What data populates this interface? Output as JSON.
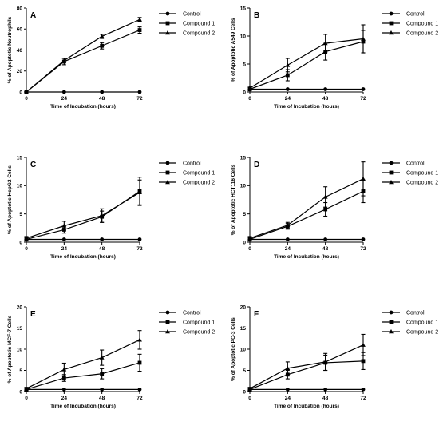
{
  "chart_data": [
    {
      "type": "line",
      "panel": "A",
      "xlabel": "Time of Incubation (hours)",
      "ylabel": "% of Apoptotic Neutrophils",
      "x": [
        0,
        24,
        48,
        72
      ],
      "xticks": [
        0,
        24,
        48,
        72
      ],
      "xlim": [
        0,
        72
      ],
      "ylim": [
        0,
        80
      ],
      "yticks": [
        0,
        20,
        40,
        60,
        80
      ],
      "legend_position": "top-right",
      "series": [
        {
          "name": "Control",
          "marker": "circle",
          "values": [
            0,
            0,
            0,
            0
          ],
          "errors": [
            0,
            0,
            0,
            0
          ]
        },
        {
          "name": "Compound 1",
          "marker": "square",
          "values": [
            0,
            29,
            44,
            59
          ],
          "errors": [
            0,
            3,
            3,
            3
          ]
        },
        {
          "name": "Compound 2",
          "marker": "triangle",
          "values": [
            0,
            30,
            53,
            69
          ],
          "errors": [
            0,
            2,
            2,
            2
          ]
        }
      ]
    },
    {
      "type": "line",
      "panel": "B",
      "xlabel": "Time of Incubation (hours)",
      "ylabel": "% of Apoptotic A549 Cells",
      "x": [
        0,
        24,
        48,
        72
      ],
      "xticks": [
        0,
        24,
        48,
        72
      ],
      "xlim": [
        0,
        72
      ],
      "ylim": [
        0,
        15
      ],
      "yticks": [
        0,
        5,
        10,
        15
      ],
      "legend_position": "top-right",
      "series": [
        {
          "name": "Control",
          "marker": "circle",
          "values": [
            0.5,
            0.5,
            0.5,
            0.5
          ],
          "errors": [
            0,
            0,
            0,
            0
          ]
        },
        {
          "name": "Compound 1",
          "marker": "square",
          "values": [
            0.5,
            3.0,
            7.2,
            9.0
          ],
          "errors": [
            0.3,
            1.0,
            1.5,
            2.0
          ]
        },
        {
          "name": "Compound 2",
          "marker": "triangle",
          "values": [
            0.7,
            4.8,
            8.7,
            9.5
          ],
          "errors": [
            0.3,
            1.2,
            1.6,
            2.5
          ]
        }
      ]
    },
    {
      "type": "line",
      "panel": "C",
      "xlabel": "Time of Incubation (hours)",
      "ylabel": "% of Apoptotic HepG2 Cells",
      "x": [
        0,
        24,
        48,
        72
      ],
      "xticks": [
        0,
        24,
        48,
        72
      ],
      "xlim": [
        0,
        72
      ],
      "ylim": [
        0,
        15
      ],
      "yticks": [
        0,
        5,
        10,
        15
      ],
      "legend_position": "top-right",
      "series": [
        {
          "name": "Control",
          "marker": "circle",
          "values": [
            0.5,
            0.5,
            0.5,
            0.5
          ],
          "errors": [
            0,
            0,
            0,
            0
          ]
        },
        {
          "name": "Compound 1",
          "marker": "square",
          "values": [
            0.5,
            2.2,
            4.5,
            9.0
          ],
          "errors": [
            0.3,
            0.6,
            1.0,
            2.5
          ]
        },
        {
          "name": "Compound 2",
          "marker": "triangle",
          "values": [
            0.7,
            2.9,
            4.7,
            8.8
          ],
          "errors": [
            0.3,
            0.8,
            1.2,
            2.2
          ]
        }
      ]
    },
    {
      "type": "line",
      "panel": "D",
      "xlabel": "Time of Incubation (hours)",
      "ylabel": "% of Apoptotic HCT116 Cells",
      "x": [
        0,
        24,
        48,
        72
      ],
      "xticks": [
        0,
        24,
        48,
        72
      ],
      "xlim": [
        0,
        72
      ],
      "ylim": [
        0,
        15
      ],
      "yticks": [
        0,
        5,
        10,
        15
      ],
      "legend_position": "top-right",
      "series": [
        {
          "name": "Control",
          "marker": "circle",
          "values": [
            0.5,
            0.5,
            0.5,
            0.5
          ],
          "errors": [
            0,
            0,
            0,
            0
          ]
        },
        {
          "name": "Compound 1",
          "marker": "square",
          "values": [
            0.5,
            2.8,
            5.8,
            9.0
          ],
          "errors": [
            0.3,
            0.5,
            1.2,
            2.0
          ]
        },
        {
          "name": "Compound 2",
          "marker": "triangle",
          "values": [
            0.7,
            3.0,
            8.0,
            11.2
          ],
          "errors": [
            0.3,
            0.5,
            1.8,
            3.0
          ]
        }
      ]
    },
    {
      "type": "line",
      "panel": "E",
      "xlabel": "Time of Incubation (hours)",
      "ylabel": "% of Apoptotic MCF-7 Cells",
      "x": [
        0,
        24,
        48,
        72
      ],
      "xticks": [
        0,
        24,
        48,
        72
      ],
      "xlim": [
        0,
        72
      ],
      "ylim": [
        0,
        20
      ],
      "yticks": [
        0,
        5,
        10,
        15,
        20
      ],
      "legend_position": "top-right",
      "series": [
        {
          "name": "Control",
          "marker": "circle",
          "values": [
            0.5,
            0.5,
            0.5,
            0.5
          ],
          "errors": [
            0,
            0,
            0,
            0
          ]
        },
        {
          "name": "Compound 1",
          "marker": "square",
          "values": [
            0.5,
            3.2,
            4.2,
            6.8
          ],
          "errors": [
            0.3,
            0.8,
            1.2,
            2.0
          ]
        },
        {
          "name": "Compound 2",
          "marker": "triangle",
          "values": [
            0.7,
            5.2,
            8.0,
            12.2
          ],
          "errors": [
            0.3,
            1.5,
            1.8,
            2.2
          ]
        }
      ]
    },
    {
      "type": "line",
      "panel": "F",
      "xlabel": "Time of Incubation (hours)",
      "ylabel": "% of Apoptotic PC-3 Cells",
      "x": [
        0,
        24,
        48,
        72
      ],
      "xticks": [
        0,
        24,
        48,
        72
      ],
      "xlim": [
        0,
        72
      ],
      "ylim": [
        0,
        20
      ],
      "yticks": [
        0,
        5,
        10,
        15,
        20
      ],
      "legend_position": "top-right",
      "series": [
        {
          "name": "Control",
          "marker": "circle",
          "values": [
            0.5,
            0.5,
            0.5,
            0.5
          ],
          "errors": [
            0,
            0,
            0,
            0
          ]
        },
        {
          "name": "Compound 1",
          "marker": "square",
          "values": [
            0.5,
            4.0,
            6.8,
            7.2
          ],
          "errors": [
            0.3,
            1.0,
            1.8,
            2.0
          ]
        },
        {
          "name": "Compound 2",
          "marker": "triangle",
          "values": [
            0.7,
            5.5,
            7.0,
            11.0
          ],
          "errors": [
            0.3,
            1.5,
            2.0,
            2.5
          ]
        }
      ]
    }
  ]
}
